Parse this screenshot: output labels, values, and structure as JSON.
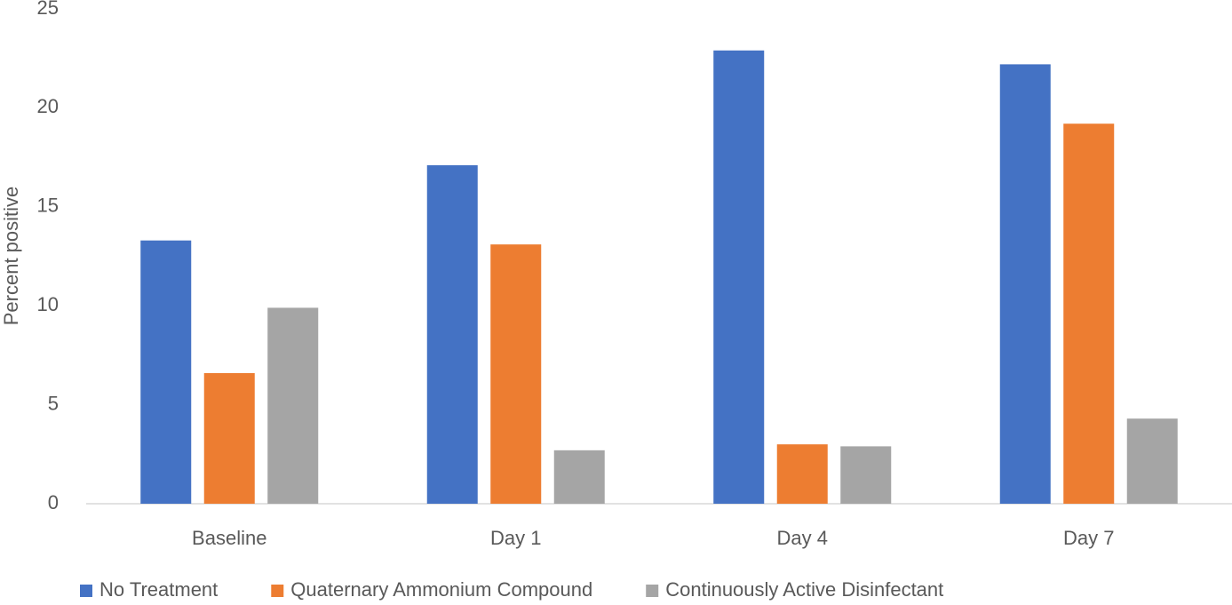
{
  "chart_data": {
    "type": "bar",
    "y_label": "Percent positive",
    "categories": [
      "Baseline",
      "Day 1",
      "Day 4",
      "Day 7"
    ],
    "series": [
      {
        "name": "No Treatment",
        "color": "#4472c4",
        "values": [
          13.3,
          17.1,
          22.9,
          22.2
        ]
      },
      {
        "name": "Quaternary Ammonium Compound",
        "color": "#ed7d31",
        "values": [
          6.6,
          13.1,
          3.0,
          19.2
        ]
      },
      {
        "name": "Continuously Active Disinfectant",
        "color": "#a5a5a5",
        "values": [
          9.9,
          2.7,
          2.9,
          4.3
        ]
      }
    ],
    "ylim": [
      0,
      25
    ],
    "yticks": [
      0,
      5,
      10,
      15,
      20,
      25
    ],
    "grid": false,
    "legend": "bottom"
  }
}
